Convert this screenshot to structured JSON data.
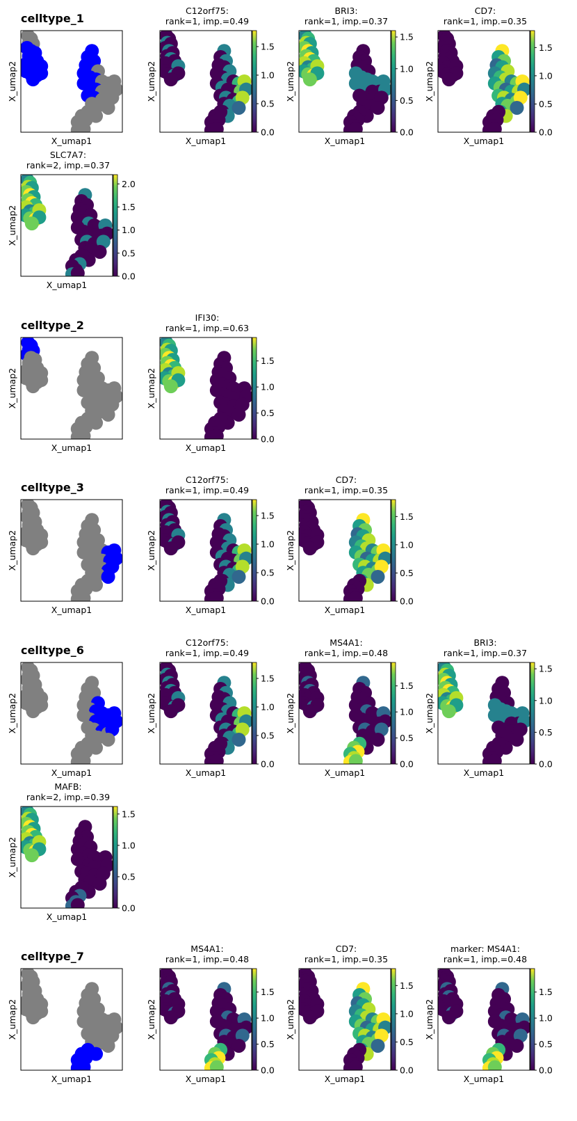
{
  "colors": {
    "highlight": "#0000ff",
    "background_points": "#808080",
    "colormap": "viridis"
  },
  "chart_data": [
    {
      "type": "scatter",
      "group": "celltype_1",
      "title": "celltype_1",
      "xlabel": "X_umap1",
      "ylabel": "X_umap2",
      "kind": "celltype"
    },
    {
      "type": "scatter",
      "group": "celltype_1",
      "title_line1": "C12orf75:",
      "title_line2": "rank=1, imp.=0.49",
      "xlabel": "X_umap1",
      "ylabel": "X_umap2",
      "colorbar_ticks": [
        "0.0",
        "0.5",
        "1.0",
        "1.5"
      ],
      "colorbar_max": 1.78,
      "gene": "C12orf75"
    },
    {
      "type": "scatter",
      "group": "celltype_1",
      "title_line1": "BRI3:",
      "title_line2": "rank=1, imp.=0.37",
      "xlabel": "X_umap1",
      "ylabel": "X_umap2",
      "colorbar_ticks": [
        "0.0",
        "0.5",
        "1.0",
        "1.5"
      ],
      "colorbar_max": 1.6,
      "gene": "BRI3"
    },
    {
      "type": "scatter",
      "group": "celltype_1",
      "title_line1": "CD7:",
      "title_line2": "rank=1, imp.=0.35",
      "xlabel": "X_umap1",
      "ylabel": "X_umap2",
      "colorbar_ticks": [
        "0.0",
        "0.5",
        "1.0",
        "1.5"
      ],
      "colorbar_max": 1.8,
      "gene": "CD7"
    },
    {
      "type": "scatter",
      "group": "celltype_1",
      "title_line1": "SLC7A7:",
      "title_line2": "rank=2, imp.=0.37",
      "xlabel": "X_umap1",
      "ylabel": "X_umap2",
      "colorbar_ticks": [
        "0.0",
        "0.5",
        "1.0",
        "1.5",
        "2.0"
      ],
      "colorbar_max": 2.2,
      "gene": "SLC7A7"
    },
    {
      "type": "scatter",
      "group": "celltype_2",
      "title": "celltype_2",
      "xlabel": "X_umap1",
      "ylabel": "X_umap2",
      "kind": "celltype"
    },
    {
      "type": "scatter",
      "group": "celltype_2",
      "title_line1": "IFI30:",
      "title_line2": "rank=1, imp.=0.63",
      "xlabel": "X_umap1",
      "ylabel": "X_umap2",
      "colorbar_ticks": [
        "0.0",
        "0.5",
        "1.0",
        "1.5"
      ],
      "colorbar_max": 1.95,
      "gene": "IFI30"
    },
    {
      "type": "scatter",
      "group": "celltype_3",
      "title": "celltype_3",
      "xlabel": "X_umap1",
      "ylabel": "X_umap2",
      "kind": "celltype"
    },
    {
      "type": "scatter",
      "group": "celltype_3",
      "title_line1": "C12orf75:",
      "title_line2": "rank=1, imp.=0.49",
      "xlabel": "X_umap1",
      "ylabel": "X_umap2",
      "colorbar_ticks": [
        "0.0",
        "0.5",
        "1.0",
        "1.5"
      ],
      "colorbar_max": 1.78,
      "gene": "C12orf75"
    },
    {
      "type": "scatter",
      "group": "celltype_3",
      "title_line1": "CD7:",
      "title_line2": "rank=1, imp.=0.35",
      "xlabel": "X_umap1",
      "ylabel": "X_umap2",
      "colorbar_ticks": [
        "0.0",
        "0.5",
        "1.0",
        "1.5"
      ],
      "colorbar_max": 1.8,
      "gene": "CD7"
    },
    {
      "type": "scatter",
      "group": "celltype_6",
      "title": "celltype_6",
      "xlabel": "X_umap1",
      "ylabel": "X_umap2",
      "kind": "celltype"
    },
    {
      "type": "scatter",
      "group": "celltype_6",
      "title_line1": "C12orf75:",
      "title_line2": "rank=1, imp.=0.49",
      "xlabel": "X_umap1",
      "ylabel": "X_umap2",
      "colorbar_ticks": [
        "0.0",
        "0.5",
        "1.0",
        "1.5"
      ],
      "colorbar_max": 1.78,
      "gene": "C12orf75"
    },
    {
      "type": "scatter",
      "group": "celltype_6",
      "title_line1": "MS4A1:",
      "title_line2": "rank=1, imp.=0.48",
      "xlabel": "X_umap1",
      "ylabel": "X_umap2",
      "colorbar_ticks": [
        "0.0",
        "0.5",
        "1.0",
        "1.5"
      ],
      "colorbar_max": 1.95,
      "gene": "MS4A1"
    },
    {
      "type": "scatter",
      "group": "celltype_6",
      "title_line1": "BRI3:",
      "title_line2": "rank=1, imp.=0.37",
      "xlabel": "X_umap1",
      "ylabel": "X_umap2",
      "colorbar_ticks": [
        "0.0",
        "0.5",
        "1.0",
        "1.5"
      ],
      "colorbar_max": 1.6,
      "gene": "BRI3"
    },
    {
      "type": "scatter",
      "group": "celltype_6",
      "title_line1": "MAFB:",
      "title_line2": "rank=2, imp.=0.39",
      "xlabel": "X_umap1",
      "ylabel": "X_umap2",
      "colorbar_ticks": [
        "0.0",
        "0.5",
        "1.0",
        "1.5"
      ],
      "colorbar_max": 1.62,
      "gene": "MAFB"
    },
    {
      "type": "scatter",
      "group": "celltype_7",
      "title": "celltype_7",
      "xlabel": "X_umap1",
      "ylabel": "X_umap2",
      "kind": "celltype"
    },
    {
      "type": "scatter",
      "group": "celltype_7",
      "title_line1": "MS4A1:",
      "title_line2": "rank=1, imp.=0.48",
      "xlabel": "X_umap1",
      "ylabel": "X_umap2",
      "colorbar_ticks": [
        "0.0",
        "0.5",
        "1.0",
        "1.5"
      ],
      "colorbar_max": 1.95,
      "gene": "MS4A1"
    },
    {
      "type": "scatter",
      "group": "celltype_7",
      "title_line1": "CD7:",
      "title_line2": "rank=1, imp.=0.35",
      "xlabel": "X_umap1",
      "ylabel": "X_umap2",
      "colorbar_ticks": [
        "0.0",
        "0.5",
        "1.0",
        "1.5"
      ],
      "colorbar_max": 1.8,
      "gene": "CD7"
    },
    {
      "type": "scatter",
      "group": "celltype_7",
      "title_line1": "marker: MS4A1:",
      "title_line2": "rank=1, imp.=0.48",
      "xlabel": "X_umap1",
      "ylabel": "X_umap2",
      "colorbar_ticks": [
        "0.0",
        "0.5",
        "1.0",
        "1.5"
      ],
      "colorbar_max": 1.95,
      "gene": "MS4A1"
    }
  ]
}
